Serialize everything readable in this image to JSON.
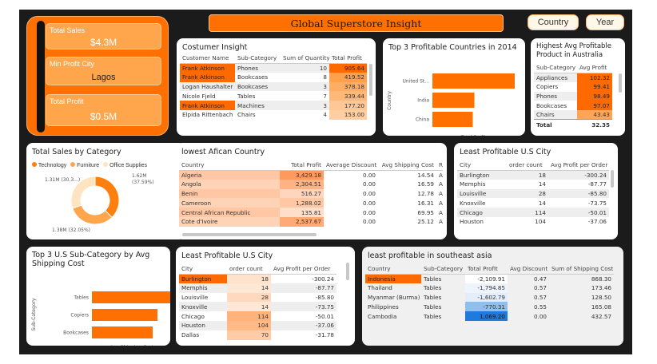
{
  "header": {
    "title": "Global Superstore Insight"
  },
  "slicers": {
    "country_label": "Country",
    "year_label": "Year"
  },
  "kpis": {
    "total_sales": {
      "label": "Total Sales",
      "value": "$4.3M"
    },
    "min_profit_city": {
      "label": "Min Profit City",
      "value": "Lagos"
    },
    "total_profit": {
      "label": "Total Profit",
      "value": "$0.5M"
    }
  },
  "customer": {
    "title": "Costumer Insight",
    "columns": [
      "Customer Name",
      "Sub-Category",
      "Sum of Quantity",
      "Total Profit"
    ],
    "rows": [
      [
        "Frank Atkinson",
        "Phones",
        "10",
        "905.64"
      ],
      [
        "Frank Atkinson",
        "Bookcases",
        "8",
        "419.52"
      ],
      [
        "Logan Haushalter",
        "Bookcases",
        "3",
        "378.18"
      ],
      [
        "Nicole Fjeld",
        "Tables",
        "7",
        "339.44"
      ],
      [
        "Frank Atkinson",
        "Machines",
        "3",
        "177.20"
      ],
      [
        "Elpida Rittenbach",
        "Chairs",
        "4",
        "153.00"
      ]
    ]
  },
  "top3_countries": {
    "title": "Top 3 Profitable Countries in 2014",
    "chart_data": {
      "type": "bar",
      "orientation": "horizontal",
      "categories": [
        "United St...",
        "India",
        "China"
      ],
      "values": [
        1.0,
        0.51,
        0.49
      ],
      "xlabel": "Total Profit",
      "ylabel": "Country"
    }
  },
  "australia": {
    "title": "Highest Avg Profitable Product in Australia",
    "columns": [
      "Sub-Category",
      "Avg Profit"
    ],
    "rows": [
      [
        "Appliances",
        "102.32"
      ],
      [
        "Copiers",
        "99.41"
      ],
      [
        "Phones",
        "98.49"
      ],
      [
        "Bookcases",
        "97.07"
      ],
      [
        "Chairs",
        "43.43"
      ]
    ],
    "total": [
      "Total",
      "32.35"
    ]
  },
  "category": {
    "title": "Total Sales by Category",
    "legend": [
      "Technology",
      "Furniture",
      "Office Supplies"
    ],
    "chart_data": {
      "type": "pie",
      "style": "donut",
      "categories": [
        "Technology",
        "Furniture",
        "Office Supplies"
      ],
      "values": [
        1.62,
        1.38,
        1.31
      ],
      "labels": [
        "1.62M (37.59%)",
        "1.38M (32.05%)",
        "1.31M (30.3...)"
      ],
      "colors": [
        "#ff7f0e",
        "#ffa64d",
        "#ffe4c2"
      ]
    }
  },
  "african": {
    "title": "lowest Afican Country",
    "columns": [
      "Country",
      "Total Profit",
      "Average Discount",
      "Avg Shipping Cost",
      "R"
    ],
    "rows": [
      [
        "Algeria",
        "3,429.18",
        "0.00",
        "14.54",
        "A"
      ],
      [
        "Angola",
        "2,304.51",
        "0.00",
        "16.59",
        "A"
      ],
      [
        "Benin",
        "516.27",
        "0.00",
        "12.78",
        "A"
      ],
      [
        "Cameroon",
        "1,288.02",
        "0.00",
        "16.31",
        "A"
      ],
      [
        "Central African Republic",
        "135.81",
        "0.00",
        "69.95",
        "A"
      ],
      [
        "Cote d'Ivoire",
        "2,537.67",
        "0.00",
        "25.12",
        "A"
      ]
    ]
  },
  "us_city_top": {
    "title": "Least Profitable U.S City",
    "columns": [
      "City",
      "order count",
      "Avg Profit per Order"
    ],
    "rows": [
      [
        "Burlington",
        "18",
        "-300.24"
      ],
      [
        "Memphis",
        "14",
        "-87.77"
      ],
      [
        "Louisville",
        "28",
        "-85.80"
      ],
      [
        "Knoxville",
        "14",
        "-73.75"
      ],
      [
        "Chicago",
        "114",
        "-50.01"
      ],
      [
        "Houston",
        "104",
        "-37.06"
      ],
      [
        "Dallas",
        "70",
        "-31.78"
      ]
    ]
  },
  "subcat": {
    "title": "Top 3 U.S Sub-Category by Avg Shipping Cost",
    "chart_data": {
      "type": "bar",
      "orientation": "horizontal",
      "categories": [
        "Tables",
        "Copiers",
        "Bookcases"
      ],
      "values": [
        1.0,
        0.82,
        0.76
      ],
      "xlabel": "Avg Shipping Cost",
      "ylabel": "Sub-Category"
    }
  },
  "us_city_bottom": {
    "title": "Least Profitable U.S City",
    "columns": [
      "City",
      "order count",
      "Avg Profit per Order"
    ],
    "rows": [
      [
        "Burlington",
        "18",
        "-300.24"
      ],
      [
        "Memphis",
        "14",
        "-87.77"
      ],
      [
        "Louisville",
        "28",
        "-85.80"
      ],
      [
        "Knoxville",
        "14",
        "-73.75"
      ],
      [
        "Chicago",
        "114",
        "-50.01"
      ],
      [
        "Houston",
        "104",
        "-37.06"
      ],
      [
        "Dallas",
        "70",
        "-31.78"
      ]
    ]
  },
  "sea": {
    "title": "least profitable in southeast asia",
    "columns": [
      "Country",
      "Sub-Category",
      "Total Profit",
      "Avg Discount",
      "Sum of Shipping Cost"
    ],
    "rows": [
      [
        "Indonesia",
        "Tables",
        "-2,109.91",
        "0.47",
        "868.30"
      ],
      [
        "Thailand",
        "Tables",
        "-1,794.85",
        "0.57",
        "173.46"
      ],
      [
        "Myanmar (Burma)",
        "Tables",
        "-1,602.79",
        "0.57",
        "128.50"
      ],
      [
        "Philippines",
        "Tables",
        "-770.31",
        "0.55",
        "165.08"
      ],
      [
        "Cambodia",
        "Tables",
        "1,069.20",
        "0.00",
        "432.57"
      ]
    ]
  }
}
